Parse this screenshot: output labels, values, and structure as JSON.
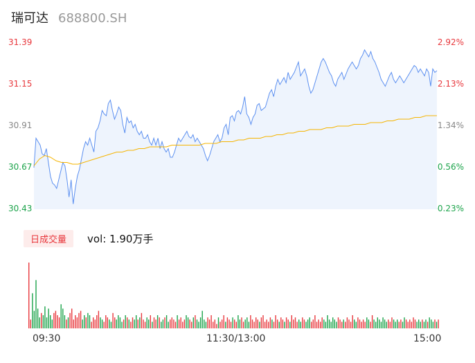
{
  "header": {
    "name": "瑞可达",
    "code": "688800.SH"
  },
  "axis": {
    "price_ticks": [
      "31.39",
      "31.15",
      "30.91",
      "30.67",
      "30.43"
    ],
    "pct_ticks": [
      "2.92%",
      "2.13%",
      "1.34%",
      "0.56%",
      "-0.23%"
    ],
    "time_ticks": [
      "09:30",
      "11:30/13:00",
      "15:00"
    ]
  },
  "volume": {
    "tab_label": "日成交量",
    "summary": "vol: 1.90万手"
  },
  "colors": {
    "price_line": "#5b8ff0",
    "avg_line": "#f5b400",
    "up": "#e8373c",
    "down": "#1ba34a",
    "flat": "#888888",
    "area": "#eef4fd"
  },
  "chart_data": [
    {
      "type": "line",
      "ylim": [
        30.43,
        31.39
      ],
      "series": [
        {
          "values": [
            30.67,
            30.84,
            30.82,
            30.8,
            30.75,
            30.74,
            30.78,
            30.7,
            30.62,
            30.58,
            30.57,
            30.55,
            30.6,
            30.65,
            30.7,
            30.68,
            30.6,
            30.5,
            30.6,
            30.46,
            30.55,
            30.62,
            30.66,
            30.72,
            30.78,
            30.82,
            30.8,
            30.84,
            30.8,
            30.76,
            30.88,
            30.9,
            30.94,
            31.0,
            30.98,
            30.97,
            31.04,
            31.06,
            31.0,
            30.95,
            30.98,
            31.02,
            31.0,
            30.92,
            30.87,
            30.96,
            30.93,
            30.94,
            30.9,
            30.92,
            30.88,
            30.86,
            30.88,
            30.84,
            30.84,
            30.86,
            30.82,
            30.8,
            30.84,
            30.8,
            30.84,
            30.78,
            30.82,
            30.78,
            30.76,
            30.78,
            30.73,
            30.73,
            30.76,
            30.8,
            30.84,
            30.82,
            30.84,
            30.86,
            30.88,
            30.85,
            30.84,
            30.86,
            30.82,
            30.84,
            30.82,
            30.8,
            30.78,
            30.74,
            30.71,
            30.74,
            30.78,
            30.82,
            30.84,
            30.86,
            30.82,
            30.84,
            30.9,
            30.92,
            30.86,
            30.96,
            30.97,
            30.94,
            30.99,
            31.0,
            30.98,
            31.02,
            31.08,
            30.98,
            30.96,
            30.92,
            30.96,
            30.98,
            31.03,
            31.04,
            31.0,
            31.01,
            31.02,
            31.06,
            31.1,
            31.12,
            31.08,
            31.14,
            31.18,
            31.15,
            31.17,
            31.19,
            31.16,
            31.22,
            31.18,
            31.2,
            31.22,
            31.25,
            31.28,
            31.2,
            31.22,
            31.24,
            31.2,
            31.14,
            31.1,
            31.12,
            31.16,
            31.2,
            31.24,
            31.28,
            31.3,
            31.28,
            31.25,
            31.22,
            31.2,
            31.16,
            31.14,
            31.18,
            31.2,
            31.22,
            31.18,
            31.21,
            31.24,
            31.26,
            31.28,
            31.26,
            31.24,
            31.26,
            31.3,
            31.32,
            31.35,
            31.33,
            31.31,
            31.34,
            31.3,
            31.28,
            31.25,
            31.22,
            31.18,
            31.16,
            31.14,
            31.17,
            31.2,
            31.22,
            31.18,
            31.16,
            31.18,
            31.2,
            31.18,
            31.16,
            31.18,
            31.2,
            31.22,
            31.24,
            31.26,
            31.25,
            31.22,
            31.24,
            31.22,
            31.2,
            31.24,
            31.22,
            31.14,
            31.24,
            31.22,
            31.23
          ]
        },
        {
          "values": [
            30.68,
            30.72,
            30.74,
            30.73,
            30.71,
            30.7,
            30.7,
            30.69,
            30.69,
            30.7,
            30.71,
            30.72,
            30.73,
            30.74,
            30.75,
            30.76,
            30.76,
            30.77,
            30.77,
            30.78,
            30.78,
            30.79,
            30.79,
            30.79,
            30.79,
            30.8,
            30.8,
            30.8,
            30.8,
            30.8,
            30.8,
            30.81,
            30.81,
            30.81,
            30.82,
            30.82,
            30.82,
            30.83,
            30.83,
            30.84,
            30.84,
            30.84,
            30.85,
            30.85,
            30.86,
            30.86,
            30.87,
            30.87,
            30.88,
            30.88,
            30.89,
            30.89,
            30.89,
            30.9,
            30.9,
            30.91,
            30.91,
            30.91,
            30.92,
            30.92,
            30.92,
            30.93,
            30.93,
            30.93,
            30.94,
            30.94,
            30.95,
            30.95,
            30.95,
            30.96,
            30.96,
            30.97,
            30.97,
            30.97
          ]
        }
      ]
    },
    {
      "type": "bar",
      "series": [
        {
          "values": [
            30,
            4,
            16,
            8,
            22,
            9,
            5,
            7,
            6,
            10,
            5,
            9,
            6,
            4,
            7,
            8,
            6,
            5,
            11,
            9,
            6,
            4,
            5,
            7,
            9,
            4,
            6,
            5,
            7,
            8,
            4,
            6,
            5,
            7,
            6,
            3,
            5,
            4,
            6,
            8,
            5,
            4,
            3,
            6,
            5,
            4,
            3,
            7,
            5,
            4,
            6,
            5,
            3,
            4,
            6,
            5,
            4,
            3,
            5,
            4,
            6,
            4,
            5,
            7,
            4,
            3,
            5,
            4,
            6,
            3,
            5,
            4,
            6,
            5,
            3,
            4,
            5,
            6,
            3,
            4,
            5,
            4,
            3,
            6,
            4,
            5,
            3,
            4,
            6,
            5,
            4,
            3,
            5,
            6,
            4,
            3,
            5,
            8,
            4,
            3,
            5,
            4,
            6,
            3,
            4,
            2,
            5,
            3,
            4,
            6,
            3,
            5,
            4,
            3,
            5,
            4,
            3,
            6,
            4,
            5,
            3,
            4,
            5,
            3,
            6,
            4,
            3,
            5,
            4,
            3,
            5,
            6,
            3,
            4,
            3,
            5,
            4,
            3,
            6,
            4,
            3,
            5,
            4,
            3,
            5,
            4,
            3,
            6,
            4,
            5,
            3,
            4,
            3,
            5,
            4,
            3,
            4,
            5,
            3,
            4,
            6,
            3,
            4,
            3,
            5,
            4,
            3,
            6,
            4,
            3,
            5,
            4,
            3,
            5,
            4,
            3,
            4,
            3,
            5,
            4,
            3,
            6,
            4,
            3,
            5,
            4,
            3,
            4,
            3,
            5,
            4,
            3,
            6,
            4,
            3,
            5,
            4,
            3,
            5,
            4,
            3,
            4,
            3,
            5,
            4,
            3,
            4,
            3,
            4,
            3,
            5,
            4,
            3,
            4,
            3,
            5,
            4,
            3,
            4,
            3,
            4,
            3,
            4,
            3,
            5,
            4,
            3,
            4,
            3,
            4
          ]
        }
      ]
    }
  ]
}
